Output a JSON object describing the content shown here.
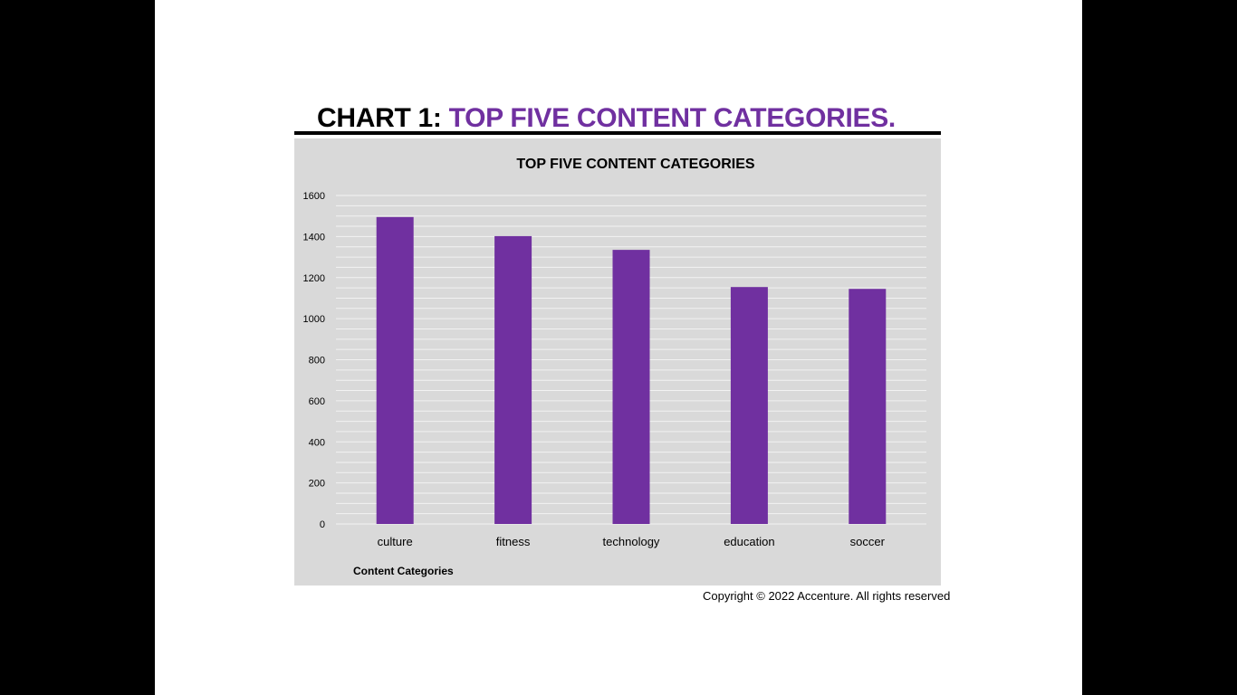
{
  "slide": {
    "title_prefix": "CHART 1: ",
    "title_main": "TOP FIVE CONTENT CATEGORIES.",
    "copyright": "Copyright © 2022 Accenture.  All rights reserved"
  },
  "colors": {
    "background": "#000000",
    "slide": "#ffffff",
    "accent": "#7030a0",
    "panel": "#d9d9d9",
    "grid": "#f2f2f2"
  },
  "chart_data": {
    "type": "bar",
    "title": "TOP FIVE CONTENT CATEGORIES",
    "xlabel": "Content Categories",
    "ylabel": "",
    "categories": [
      "culture",
      "fitness",
      "technology",
      "education",
      "soccer"
    ],
    "values": [
      1495,
      1402,
      1335,
      1154,
      1145
    ],
    "ylim": [
      0,
      1600
    ],
    "yticks": [
      "0",
      "200",
      "400",
      "600",
      "800",
      "1000",
      "1200",
      "1400",
      "1600"
    ],
    "grid": true,
    "legend": "none"
  }
}
